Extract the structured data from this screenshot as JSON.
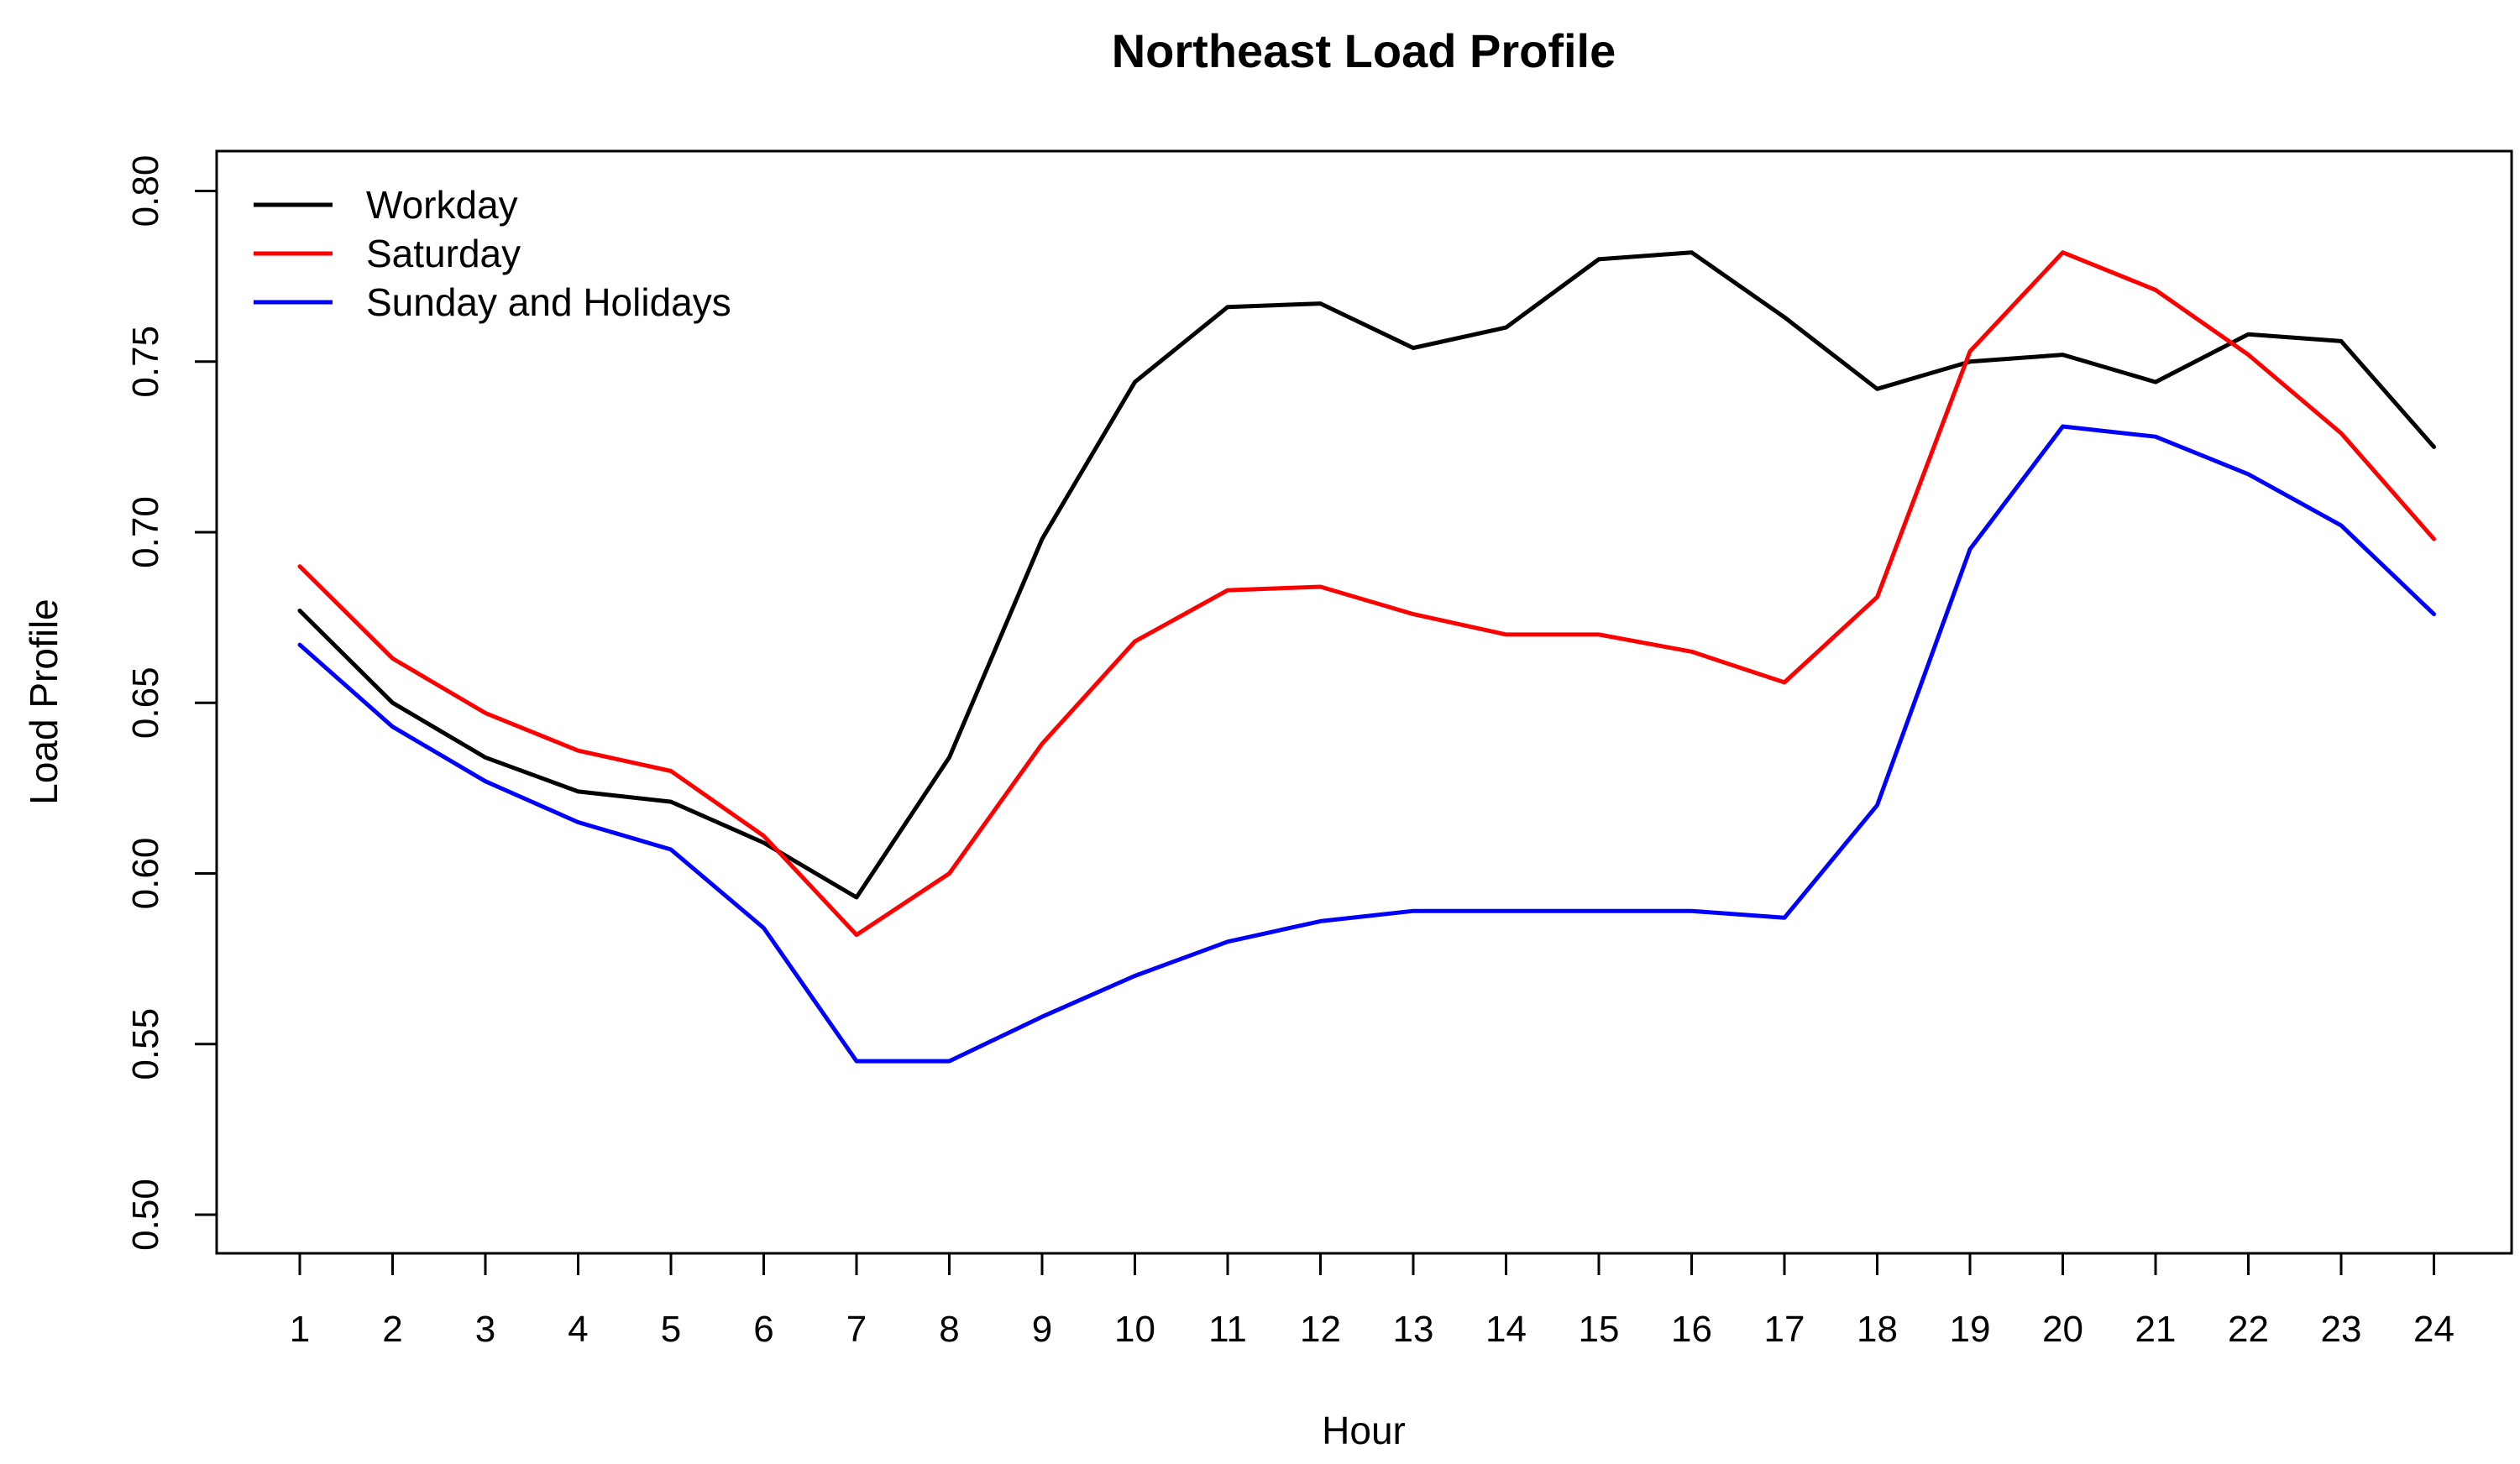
{
  "chart_data": {
    "type": "line",
    "title": "Northeast Load Profile",
    "xlabel": "Hour",
    "ylabel": "Load Profile",
    "x": [
      1,
      2,
      3,
      4,
      5,
      6,
      7,
      8,
      9,
      10,
      11,
      12,
      13,
      14,
      15,
      16,
      17,
      18,
      19,
      20,
      21,
      22,
      23,
      24
    ],
    "x_tick_labels": [
      "1",
      "2",
      "3",
      "4",
      "5",
      "6",
      "7",
      "8",
      "9",
      "10",
      "11",
      "12",
      "13",
      "14",
      "15",
      "16",
      "17",
      "18",
      "19",
      "20",
      "21",
      "22",
      "23",
      "24"
    ],
    "ylim": [
      0.5,
      0.8
    ],
    "y_ticks": [
      0.5,
      0.55,
      0.6,
      0.65,
      0.7,
      0.75,
      0.8
    ],
    "y_tick_labels": [
      "0.50",
      "0.55",
      "0.60",
      "0.65",
      "0.70",
      "0.75",
      "0.80"
    ],
    "legend_position": "top-left",
    "series": [
      {
        "name": "Workday",
        "color": "#000000",
        "values": [
          0.677,
          0.65,
          0.634,
          0.624,
          0.621,
          0.609,
          0.593,
          0.634,
          0.698,
          0.744,
          0.766,
          0.767,
          0.754,
          0.76,
          0.78,
          0.782,
          0.763,
          0.742,
          0.75,
          0.752,
          0.744,
          0.758,
          0.756,
          0.725
        ]
      },
      {
        "name": "Saturday",
        "color": "#ff0000",
        "values": [
          0.69,
          0.663,
          0.647,
          0.636,
          0.63,
          0.611,
          0.582,
          0.6,
          0.638,
          0.668,
          0.683,
          0.684,
          0.676,
          0.67,
          0.67,
          0.665,
          0.656,
          0.681,
          0.753,
          0.782,
          0.771,
          0.752,
          0.729,
          0.698
        ]
      },
      {
        "name": "Sunday and Holidays",
        "color": "#0000ff",
        "values": [
          0.667,
          0.643,
          0.627,
          0.615,
          0.607,
          0.584,
          0.545,
          0.545,
          0.558,
          0.57,
          0.58,
          0.586,
          0.589,
          0.589,
          0.589,
          0.589,
          0.587,
          0.62,
          0.695,
          0.731,
          0.728,
          0.717,
          0.702,
          0.676
        ]
      }
    ]
  }
}
